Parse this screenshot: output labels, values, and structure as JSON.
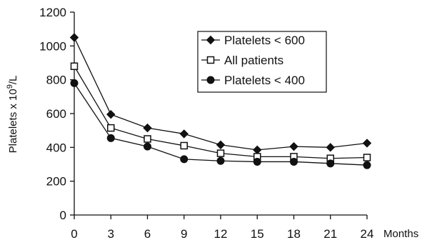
{
  "chart_data": {
    "type": "line",
    "x": [
      0,
      3,
      6,
      9,
      12,
      15,
      18,
      21,
      24
    ],
    "xticks": [
      "0",
      "3",
      "6",
      "9",
      "12",
      "15",
      "18",
      "21",
      "24"
    ],
    "yticks": [
      "0",
      "200",
      "400",
      "600",
      "800",
      "1000",
      "1200"
    ],
    "xlabel": "Months",
    "ylabel": "Platelets x 10⁹/L",
    "ylabel_base": "Platelets x 10",
    "ylabel_exp": "9",
    "ylabel_unit": "/L",
    "xlim": [
      0,
      24
    ],
    "ylim": [
      0,
      1200
    ],
    "grid": false,
    "legend_position": "top-right",
    "series": [
      {
        "name": "Platelets < 600",
        "marker": "diamond",
        "values": [
          1050,
          595,
          515,
          480,
          415,
          385,
          405,
          400,
          425
        ]
      },
      {
        "name": "All patients",
        "marker": "open-square",
        "values": [
          880,
          515,
          450,
          410,
          365,
          345,
          345,
          335,
          340
        ]
      },
      {
        "name": "Platelets < 400",
        "marker": "filled-circle",
        "values": [
          780,
          455,
          405,
          330,
          320,
          315,
          315,
          305,
          295
        ]
      }
    ],
    "colors": {
      "line": "#111111",
      "marker_fill": "#111111",
      "open_marker_fill": "#ffffff"
    }
  }
}
